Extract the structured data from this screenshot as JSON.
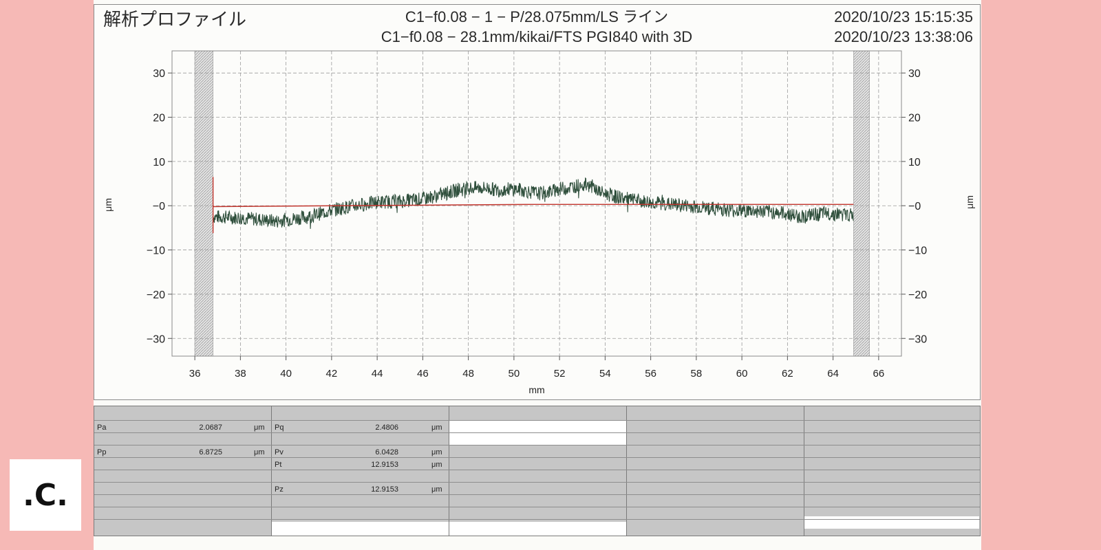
{
  "header": {
    "title": "解析プロファイル",
    "line1": "C1−f0.08 − 1 − P/28.075mm/LS ライン",
    "line2": "C1−f0.08 − 28.1mm/kikai/FTS PGI840 with 3D",
    "date1": "2020/10/23 15:15:35",
    "date2": "2020/10/23 13:38:06"
  },
  "logo": {
    "text": ".C."
  },
  "chart_data": {
    "type": "line",
    "xlabel": "mm",
    "ylabel": "μm",
    "xlim": [
      35,
      67
    ],
    "ylim": [
      -34,
      35
    ],
    "x_ticks": [
      36,
      38,
      40,
      42,
      44,
      46,
      48,
      50,
      52,
      54,
      56,
      58,
      60,
      62,
      64,
      66
    ],
    "y_ticks": [
      30,
      20,
      10,
      0,
      -10,
      -20,
      -30
    ],
    "y_tick_labels": [
      "30",
      "20",
      "10",
      "−0",
      "−10",
      "−20",
      "−30"
    ],
    "shaded_regions": [
      [
        36.0,
        36.8
      ],
      [
        64.9,
        65.6
      ]
    ],
    "grid": true,
    "colors": {
      "profile": "#2f4f3c",
      "reference": "#c0332b",
      "grid": "#9a9a9a"
    },
    "series": [
      {
        "x": [
          36.8,
          37.5,
          38.2,
          39.0,
          39.6,
          40.2,
          41.0,
          42.0,
          43.0,
          44.0,
          45.0,
          46.0,
          46.8,
          47.5,
          48.2,
          48.8,
          49.3,
          49.8,
          50.3,
          50.8,
          51.2,
          51.6,
          52.0,
          52.5,
          53.0,
          53.4,
          53.8,
          54.5,
          55.5,
          56.5,
          57.5,
          58.5,
          59.5,
          60.5,
          61.5,
          62.0,
          62.5,
          63.0,
          63.5,
          64.0,
          64.9
        ],
        "values": [
          -2.5,
          -2.6,
          -2.8,
          -3.2,
          -3.5,
          -3.0,
          -2.5,
          -1.0,
          0.0,
          0.8,
          1.0,
          1.5,
          2.5,
          3.5,
          4.0,
          4.0,
          3.5,
          3.8,
          3.6,
          3.0,
          2.8,
          3.2,
          3.8,
          4.2,
          4.8,
          4.5,
          3.0,
          2.0,
          1.0,
          0.5,
          0.0,
          -0.5,
          -1.0,
          -1.2,
          -1.5,
          -1.8,
          -2.5,
          -2.2,
          -1.8,
          -1.8,
          -2.2
        ]
      },
      {
        "x": [
          36.8,
          50.8,
          53.5,
          64.9
        ],
        "values": [
          -0.2,
          0.3,
          0.3,
          0.3
        ]
      }
    ]
  },
  "results": {
    "col1": [
      {
        "label": "Pa",
        "value": "2.0687",
        "unit": "μm"
      },
      {
        "label": "Pp",
        "value": "6.8725",
        "unit": "μm"
      }
    ],
    "col2": [
      {
        "label": "Pq",
        "value": "2.4806",
        "unit": "μm"
      },
      {
        "label": "Pv",
        "value": "6.0428",
        "unit": "μm"
      },
      {
        "label": "Pt",
        "value": "12.9153",
        "unit": "μm"
      },
      {
        "label": "Pz",
        "value": "12.9153",
        "unit": "μm"
      }
    ]
  }
}
